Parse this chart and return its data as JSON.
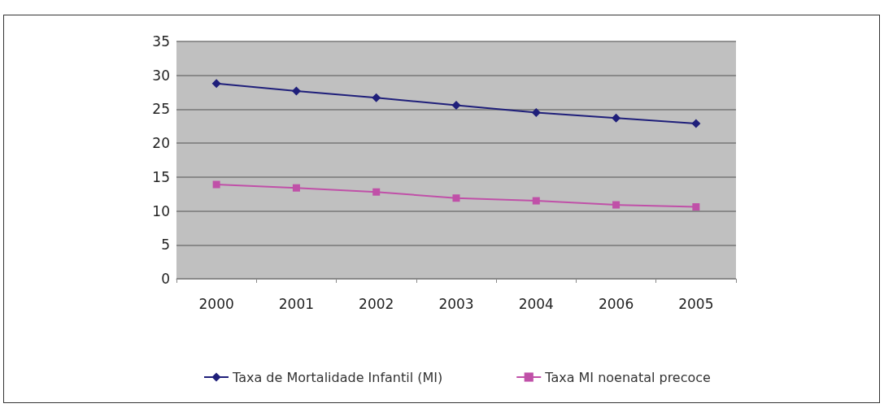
{
  "chart_data": {
    "type": "line",
    "categories": [
      "2000",
      "2001",
      "2002",
      "2003",
      "2004",
      "2006",
      "2005"
    ],
    "series": [
      {
        "name": "Taxa de Mortalidade Infantil (MI)",
        "color": "#1f1f7a",
        "marker": "diamond",
        "values": [
          28.8,
          27.7,
          26.7,
          25.6,
          24.5,
          23.7,
          22.9
        ]
      },
      {
        "name": "Taxa MI noenatal precoce",
        "color": "#c050a8",
        "marker": "square",
        "values": [
          13.9,
          13.4,
          12.8,
          11.9,
          11.5,
          10.9,
          10.6
        ]
      }
    ],
    "ylim": [
      0,
      35
    ],
    "yticks": [
      0,
      5,
      10,
      15,
      20,
      25,
      30,
      35
    ],
    "grid": "y",
    "legend": "bottom"
  }
}
